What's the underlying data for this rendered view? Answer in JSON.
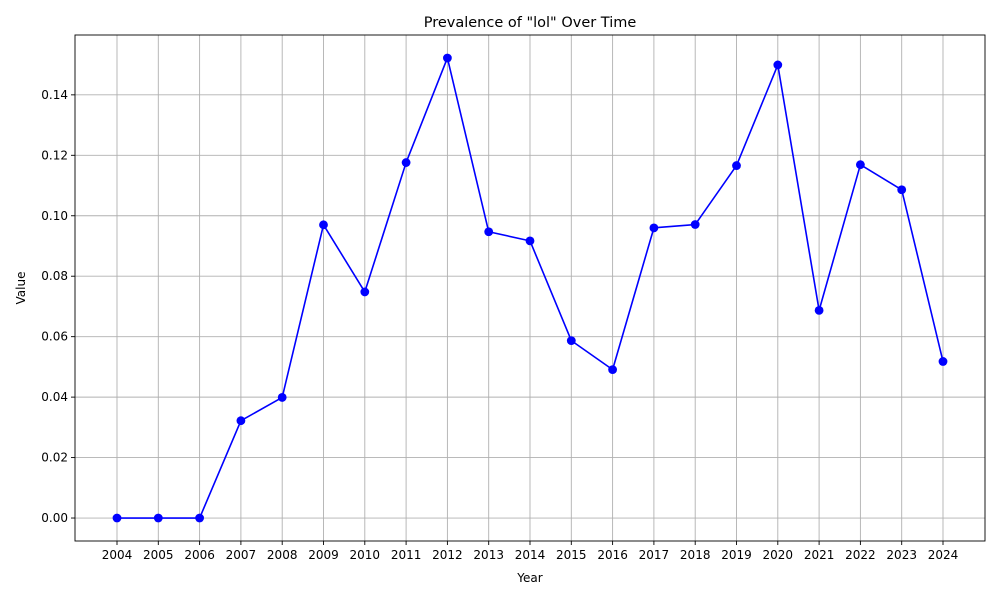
{
  "chart_data": {
    "type": "line",
    "title": "Prevalence of \"lol\" Over Time",
    "xlabel": "Year",
    "ylabel": "Value",
    "x": [
      "2004",
      "2005",
      "2006",
      "2007",
      "2008",
      "2009",
      "2010",
      "2011",
      "2012",
      "2013",
      "2014",
      "2015",
      "2016",
      "2017",
      "2018",
      "2019",
      "2020",
      "2021",
      "2022",
      "2023",
      "2024"
    ],
    "series": [
      {
        "values": [
          0.0,
          0.0,
          0.0,
          0.0322,
          0.0399,
          0.097,
          0.0748,
          0.1176,
          0.1522,
          0.0947,
          0.0917,
          0.0587,
          0.0491,
          0.096,
          0.0971,
          0.1166,
          0.1499,
          0.0687,
          0.1169,
          0.1086,
          0.0518
        ],
        "color": "#0000ff"
      }
    ],
    "ylim": [
      -0.0076,
      0.1598
    ],
    "yticks": [
      "0.00",
      "0.02",
      "0.04",
      "0.06",
      "0.08",
      "0.10",
      "0.12",
      "0.14"
    ],
    "grid": true,
    "marker": "circle"
  }
}
